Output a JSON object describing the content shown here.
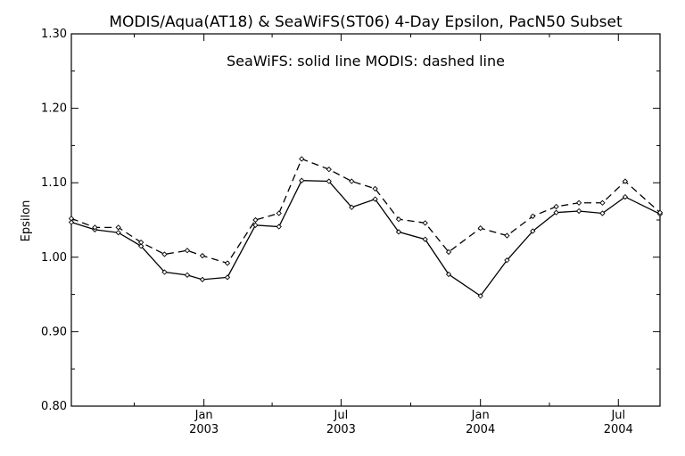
{
  "chart_data": {
    "type": "line",
    "title": "MODIS/Aqua(AT18) & SeaWiFS(ST06) 4-Day Epsilon, PacN50 Subset",
    "subtitle": "SeaWiFS: solid line    MODIS: dashed line",
    "xlabel": "",
    "ylabel": "Epsilon",
    "ylim": [
      0.8,
      1.3
    ],
    "yticks": [
      "0.80",
      "0.90",
      "1.00",
      "1.10",
      "1.20",
      "1.30"
    ],
    "xlim": [
      "2002-07-10",
      "2004-08-25"
    ],
    "xticks": [
      {
        "month": "Jan",
        "year": "2003",
        "date": "2003-01-01"
      },
      {
        "month": "Jul",
        "year": "2003",
        "date": "2003-07-01"
      },
      {
        "month": "Jan",
        "year": "2004",
        "date": "2004-01-01"
      },
      {
        "month": "Jul",
        "year": "2004",
        "date": "2004-07-01"
      }
    ],
    "grid": false,
    "series": [
      {
        "name": "SeaWiFS",
        "style": "solid",
        "color": "#000000",
        "points": [
          {
            "x": "2002-07-10",
            "y": 1.047
          },
          {
            "x": "2002-08-10",
            "y": 1.037
          },
          {
            "x": "2002-09-10",
            "y": 1.033
          },
          {
            "x": "2002-10-10",
            "y": 1.015
          },
          {
            "x": "2002-11-10",
            "y": 0.98
          },
          {
            "x": "2002-12-10",
            "y": 0.976
          },
          {
            "x": "2002-12-30",
            "y": 0.97
          },
          {
            "x": "2003-02-01",
            "y": 0.973
          },
          {
            "x": "2003-03-10",
            "y": 1.043
          },
          {
            "x": "2003-04-10",
            "y": 1.041
          },
          {
            "x": "2003-05-10",
            "y": 1.103
          },
          {
            "x": "2003-06-15",
            "y": 1.102
          },
          {
            "x": "2003-07-15",
            "y": 1.067
          },
          {
            "x": "2003-08-15",
            "y": 1.078
          },
          {
            "x": "2003-09-15",
            "y": 1.034
          },
          {
            "x": "2003-10-20",
            "y": 1.024
          },
          {
            "x": "2003-11-20",
            "y": 0.977
          },
          {
            "x": "2004-01-01",
            "y": 0.948
          },
          {
            "x": "2004-02-05",
            "y": 0.996
          },
          {
            "x": "2004-03-10",
            "y": 1.035
          },
          {
            "x": "2004-04-10",
            "y": 1.06
          },
          {
            "x": "2004-05-10",
            "y": 1.062
          },
          {
            "x": "2004-06-10",
            "y": 1.059
          },
          {
            "x": "2004-07-10",
            "y": 1.081
          },
          {
            "x": "2004-08-25",
            "y": 1.058
          }
        ]
      },
      {
        "name": "MODIS",
        "style": "dashed",
        "color": "#000000",
        "points": [
          {
            "x": "2002-07-10",
            "y": 1.052
          },
          {
            "x": "2002-08-10",
            "y": 1.04
          },
          {
            "x": "2002-09-10",
            "y": 1.04
          },
          {
            "x": "2002-10-10",
            "y": 1.02
          },
          {
            "x": "2002-11-10",
            "y": 1.004
          },
          {
            "x": "2002-12-10",
            "y": 1.009
          },
          {
            "x": "2002-12-30",
            "y": 1.002
          },
          {
            "x": "2003-02-01",
            "y": 0.992
          },
          {
            "x": "2003-03-10",
            "y": 1.05
          },
          {
            "x": "2003-04-10",
            "y": 1.059
          },
          {
            "x": "2003-05-10",
            "y": 1.132
          },
          {
            "x": "2003-06-15",
            "y": 1.118
          },
          {
            "x": "2003-07-15",
            "y": 1.102
          },
          {
            "x": "2003-08-15",
            "y": 1.092
          },
          {
            "x": "2003-09-15",
            "y": 1.051
          },
          {
            "x": "2003-10-20",
            "y": 1.046
          },
          {
            "x": "2003-11-20",
            "y": 1.007
          },
          {
            "x": "2004-01-01",
            "y": 1.039
          },
          {
            "x": "2004-02-05",
            "y": 1.029
          },
          {
            "x": "2004-03-10",
            "y": 1.055
          },
          {
            "x": "2004-04-10",
            "y": 1.068
          },
          {
            "x": "2004-05-10",
            "y": 1.073
          },
          {
            "x": "2004-06-10",
            "y": 1.073
          },
          {
            "x": "2004-07-10",
            "y": 1.102
          },
          {
            "x": "2004-08-25",
            "y": 1.06
          }
        ]
      }
    ]
  }
}
